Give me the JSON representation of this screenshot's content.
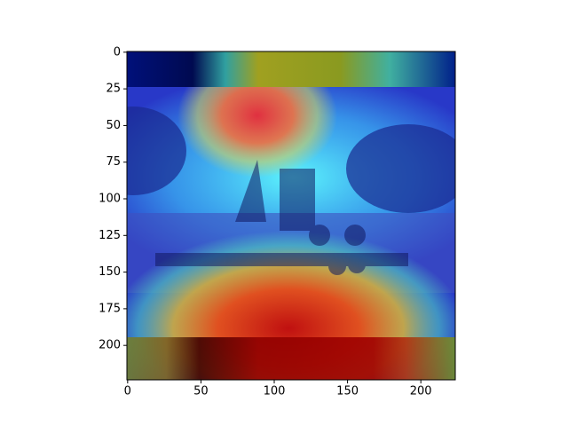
{
  "chart_data": {
    "type": "image",
    "xlim": [
      -0.5,
      223.5
    ],
    "ylim": [
      223.5,
      -0.5
    ],
    "xticks": [
      0,
      50,
      100,
      150,
      200
    ],
    "yticks": [
      0,
      25,
      50,
      75,
      100,
      125,
      150,
      175,
      200
    ]
  }
}
